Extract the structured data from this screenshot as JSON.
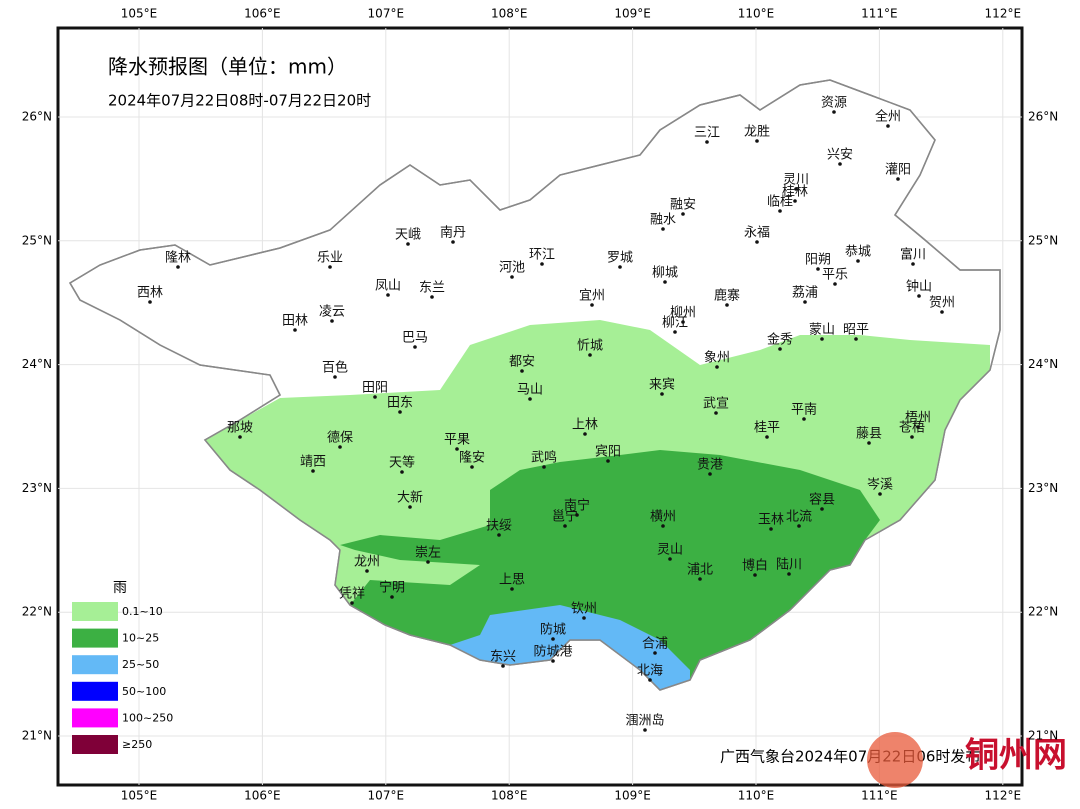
{
  "header": {
    "title": "降水预报图（单位：mm）",
    "subtitle": "2024年07月22日08时-07月22日20时"
  },
  "axes": {
    "longitudes": [
      "105°E",
      "106°E",
      "107°E",
      "108°E",
      "109°E",
      "110°E",
      "111°E",
      "112°E"
    ],
    "latitudes": [
      "26°N",
      "25°N",
      "24°N",
      "23°N",
      "22°N",
      "21°N"
    ]
  },
  "cities": [
    "隆林",
    "西林",
    "乐业",
    "天峨",
    "南丹",
    "河池",
    "环江",
    "罗城",
    "融安",
    "融水",
    "三江",
    "龙胜",
    "资源",
    "全州",
    "兴安",
    "灌阳",
    "灵川",
    "桂林",
    "临桂",
    "永福",
    "阳朔",
    "平乐",
    "恭城",
    "富川",
    "钟山",
    "贺州",
    "柳城",
    "鹿寨",
    "荔浦",
    "宜州",
    "柳州",
    "柳江",
    "凤山",
    "东兰",
    "凌云",
    "田林",
    "巴马",
    "百色",
    "田阳",
    "田东",
    "都安",
    "马山",
    "忻城",
    "象州",
    "金秀",
    "蒙山",
    "昭平",
    "来宾",
    "武宣",
    "平南",
    "桂平",
    "藤县",
    "梧州",
    "苍梧",
    "那坡",
    "德保",
    "靖西",
    "天等",
    "平果",
    "隆安",
    "上林",
    "宾阳",
    "武鸣",
    "贵港",
    "岑溪",
    "大新",
    "南宁",
    "邕宁",
    "横州",
    "玉林",
    "北流",
    "容县",
    "扶绥",
    "崇左",
    "龙州",
    "凭祥",
    "宁明",
    "上思",
    "灵山",
    "浦北",
    "博白",
    "陆川",
    "钦州",
    "防城",
    "防城港",
    "东兴",
    "合浦",
    "北海",
    "涠洲岛"
  ],
  "legend": {
    "title": "雨",
    "items": [
      {
        "label": "0.1~10",
        "color": "#a6ef96"
      },
      {
        "label": "10~25",
        "color": "#3cb043"
      },
      {
        "label": "25~50",
        "color": "#63b9f6"
      },
      {
        "label": "50~100",
        "color": "#0000ff"
      },
      {
        "label": "100~250",
        "color": "#ff00ff"
      },
      {
        "label": "≥250",
        "color": "#7f0038"
      }
    ]
  },
  "footer": "广西气象台2024年07月22日06时发布",
  "watermark": "铜州网"
}
